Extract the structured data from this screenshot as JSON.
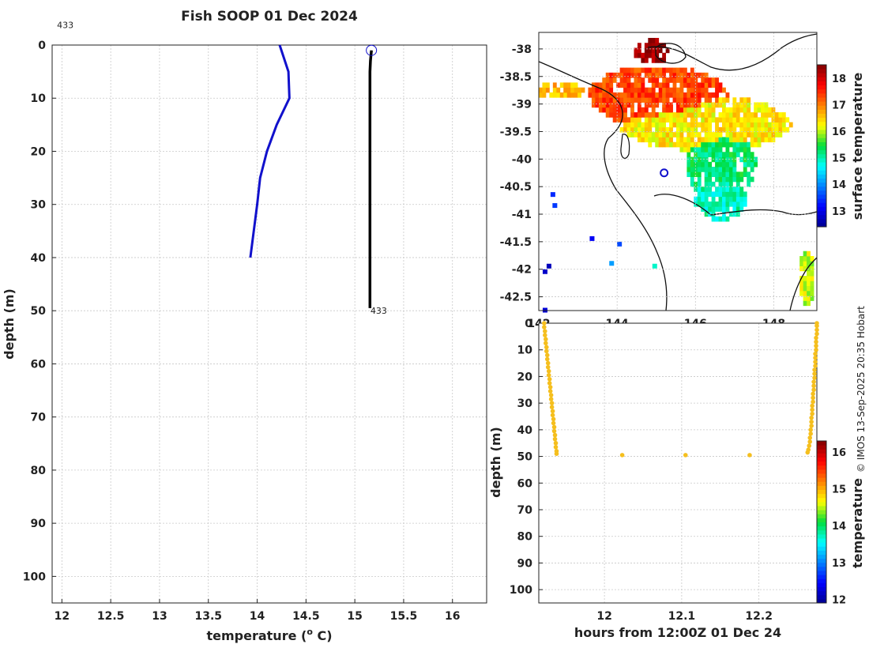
{
  "credit": "© IMOS 13-Sep-2025 20:35 Hobart",
  "chart_data": [
    {
      "type": "line",
      "title": "Fish SOOP 01 Dec 2024",
      "xlabel": "temperature (",
      "xlabel_sup": "o",
      "xlabel_end": " C)",
      "ylabel": "depth (m)",
      "xlim": [
        11.9,
        16.35
      ],
      "ylim": [
        105,
        0
      ],
      "xticks": [
        12,
        12.5,
        13,
        13.5,
        14,
        14.5,
        15,
        15.5,
        16
      ],
      "yticks": [
        0,
        10,
        20,
        30,
        40,
        50,
        60,
        70,
        80,
        90,
        100
      ],
      "grid": true,
      "annotations": [
        {
          "text": "433",
          "x": 11.95,
          "y": -2
        },
        {
          "text": "433",
          "x": 15.16,
          "y": 50
        }
      ],
      "series": [
        {
          "color": "#1111cc",
          "x": [
            14.23,
            14.32,
            14.33,
            14.2,
            14.1,
            14.03,
            14.0,
            13.93
          ],
          "y": [
            0,
            5,
            10,
            15,
            20,
            25,
            30,
            40
          ]
        },
        {
          "color": "#000000",
          "x": [
            15.17,
            15.16,
            15.155,
            15.155,
            15.155,
            15.155,
            15.155,
            15.155
          ],
          "y": [
            1,
            3,
            5,
            10,
            20,
            30,
            40,
            49.5
          ]
        }
      ],
      "marker": {
        "x": 15.17,
        "y": 1
      }
    },
    {
      "type": "heatmap",
      "colorbar_label": "surface temperature",
      "clim": [
        12.4,
        18.5
      ],
      "colorbar_ticks": [
        13,
        14,
        15,
        16,
        17,
        18
      ],
      "xlim": [
        142,
        149.1
      ],
      "ylim": [
        -42.75,
        -37.7
      ],
      "xticks": [
        142,
        144,
        146,
        148
      ],
      "yticks": [
        -38,
        -38.5,
        -39,
        -39.5,
        -40,
        -40.5,
        -41,
        -41.5,
        -42,
        -42.5
      ],
      "grid": true,
      "marker": {
        "lon": 145.2,
        "lat": -40.25,
        "color": "#1111cc"
      }
    },
    {
      "type": "scatter",
      "xlabel": "hours from 12:00Z 01 Dec 24",
      "ylabel": "depth (m)",
      "colorbar_label": "temperature",
      "clim": [
        11.9,
        16.3
      ],
      "colorbar_ticks": [
        12,
        13,
        14,
        15,
        16
      ],
      "xlim": [
        11.915,
        12.275
      ],
      "ylim": [
        105,
        0
      ],
      "xticks": [
        12,
        12.1,
        12.2
      ],
      "yticks": [
        0,
        10,
        20,
        30,
        40,
        50,
        60,
        70,
        80,
        90,
        100
      ],
      "grid": true,
      "color": "#f5bf1e",
      "points": [
        [
          11.922,
          0
        ],
        [
          11.922,
          1.5
        ],
        [
          11.923,
          3
        ],
        [
          11.923,
          4.5
        ],
        [
          11.924,
          6
        ],
        [
          11.924,
          7.5
        ],
        [
          11.925,
          9
        ],
        [
          11.925,
          10.5
        ],
        [
          11.926,
          12
        ],
        [
          11.926,
          13.5
        ],
        [
          11.927,
          15
        ],
        [
          11.927,
          16.5
        ],
        [
          11.928,
          18
        ],
        [
          11.928,
          19.5
        ],
        [
          11.929,
          21
        ],
        [
          11.929,
          22.5
        ],
        [
          11.93,
          24
        ],
        [
          11.93,
          25.5
        ],
        [
          11.931,
          27
        ],
        [
          11.931,
          28.5
        ],
        [
          11.932,
          30
        ],
        [
          11.932,
          31.5
        ],
        [
          11.933,
          33
        ],
        [
          11.933,
          34.5
        ],
        [
          11.934,
          36
        ],
        [
          11.934,
          37.5
        ],
        [
          11.935,
          39
        ],
        [
          11.935,
          40.5
        ],
        [
          11.936,
          42
        ],
        [
          11.936,
          43.5
        ],
        [
          11.937,
          45
        ],
        [
          11.937,
          46.5
        ],
        [
          11.938,
          48
        ],
        [
          11.938,
          49
        ],
        [
          12.023,
          49.5
        ],
        [
          12.105,
          49.5
        ],
        [
          12.188,
          49.5
        ],
        [
          12.263,
          48.5
        ],
        [
          12.264,
          47.5
        ],
        [
          12.265,
          46
        ],
        [
          12.266,
          44.5
        ],
        [
          12.266,
          43
        ],
        [
          12.267,
          41.5
        ],
        [
          12.267,
          40
        ],
        [
          12.268,
          38.5
        ],
        [
          12.268,
          37
        ],
        [
          12.268,
          35.5
        ],
        [
          12.269,
          34
        ],
        [
          12.269,
          32.5
        ],
        [
          12.269,
          31
        ],
        [
          12.27,
          29.5
        ],
        [
          12.27,
          28
        ],
        [
          12.27,
          26.5
        ],
        [
          12.271,
          25
        ],
        [
          12.271,
          23.5
        ],
        [
          12.271,
          22
        ],
        [
          12.272,
          20.5
        ],
        [
          12.272,
          19
        ],
        [
          12.272,
          17.5
        ],
        [
          12.273,
          16
        ],
        [
          12.273,
          14.5
        ],
        [
          12.273,
          13
        ],
        [
          12.273,
          11.5
        ],
        [
          12.274,
          10
        ],
        [
          12.274,
          8.5
        ],
        [
          12.274,
          7
        ],
        [
          12.274,
          5.5
        ],
        [
          12.275,
          4
        ],
        [
          12.275,
          2.5
        ],
        [
          12.275,
          1
        ],
        [
          12.275,
          0
        ]
      ]
    }
  ]
}
